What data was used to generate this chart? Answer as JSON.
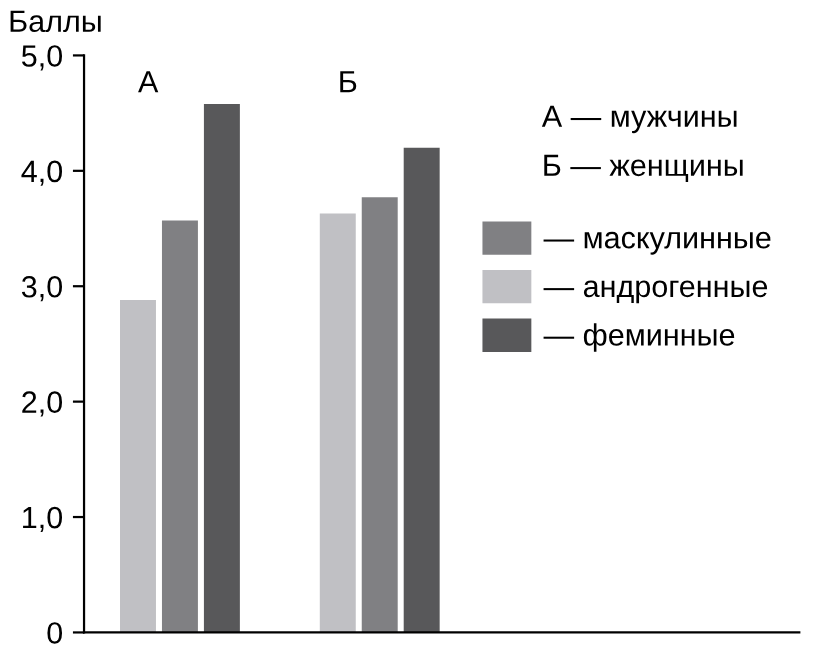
{
  "chart_data": {
    "type": "bar",
    "ylabel": "Баллы",
    "categories": [
      "А",
      "Б"
    ],
    "series": [
      {
        "name": "— андрогенные",
        "color": "#c0c0c4",
        "values": [
          2.88,
          3.63
        ]
      },
      {
        "name": "— маскулинные",
        "color": "#808083",
        "values": [
          3.57,
          3.77
        ]
      },
      {
        "name": "— феминные",
        "color": "#58585a",
        "values": [
          4.58,
          4.2
        ]
      }
    ],
    "ylim": [
      0,
      5
    ],
    "yticks": [
      0,
      {
        "value": 1,
        "label": "1,0"
      },
      {
        "value": 2,
        "label": "2,0"
      },
      {
        "value": 3,
        "label": "3,0"
      },
      {
        "value": 4,
        "label": "4,0"
      },
      {
        "value": 5,
        "label": "5,0"
      }
    ],
    "tick_labels": "y",
    "grid": false,
    "legend": "top right",
    "annotations": [
      "А — мужчины",
      "Б — женщины"
    ]
  }
}
